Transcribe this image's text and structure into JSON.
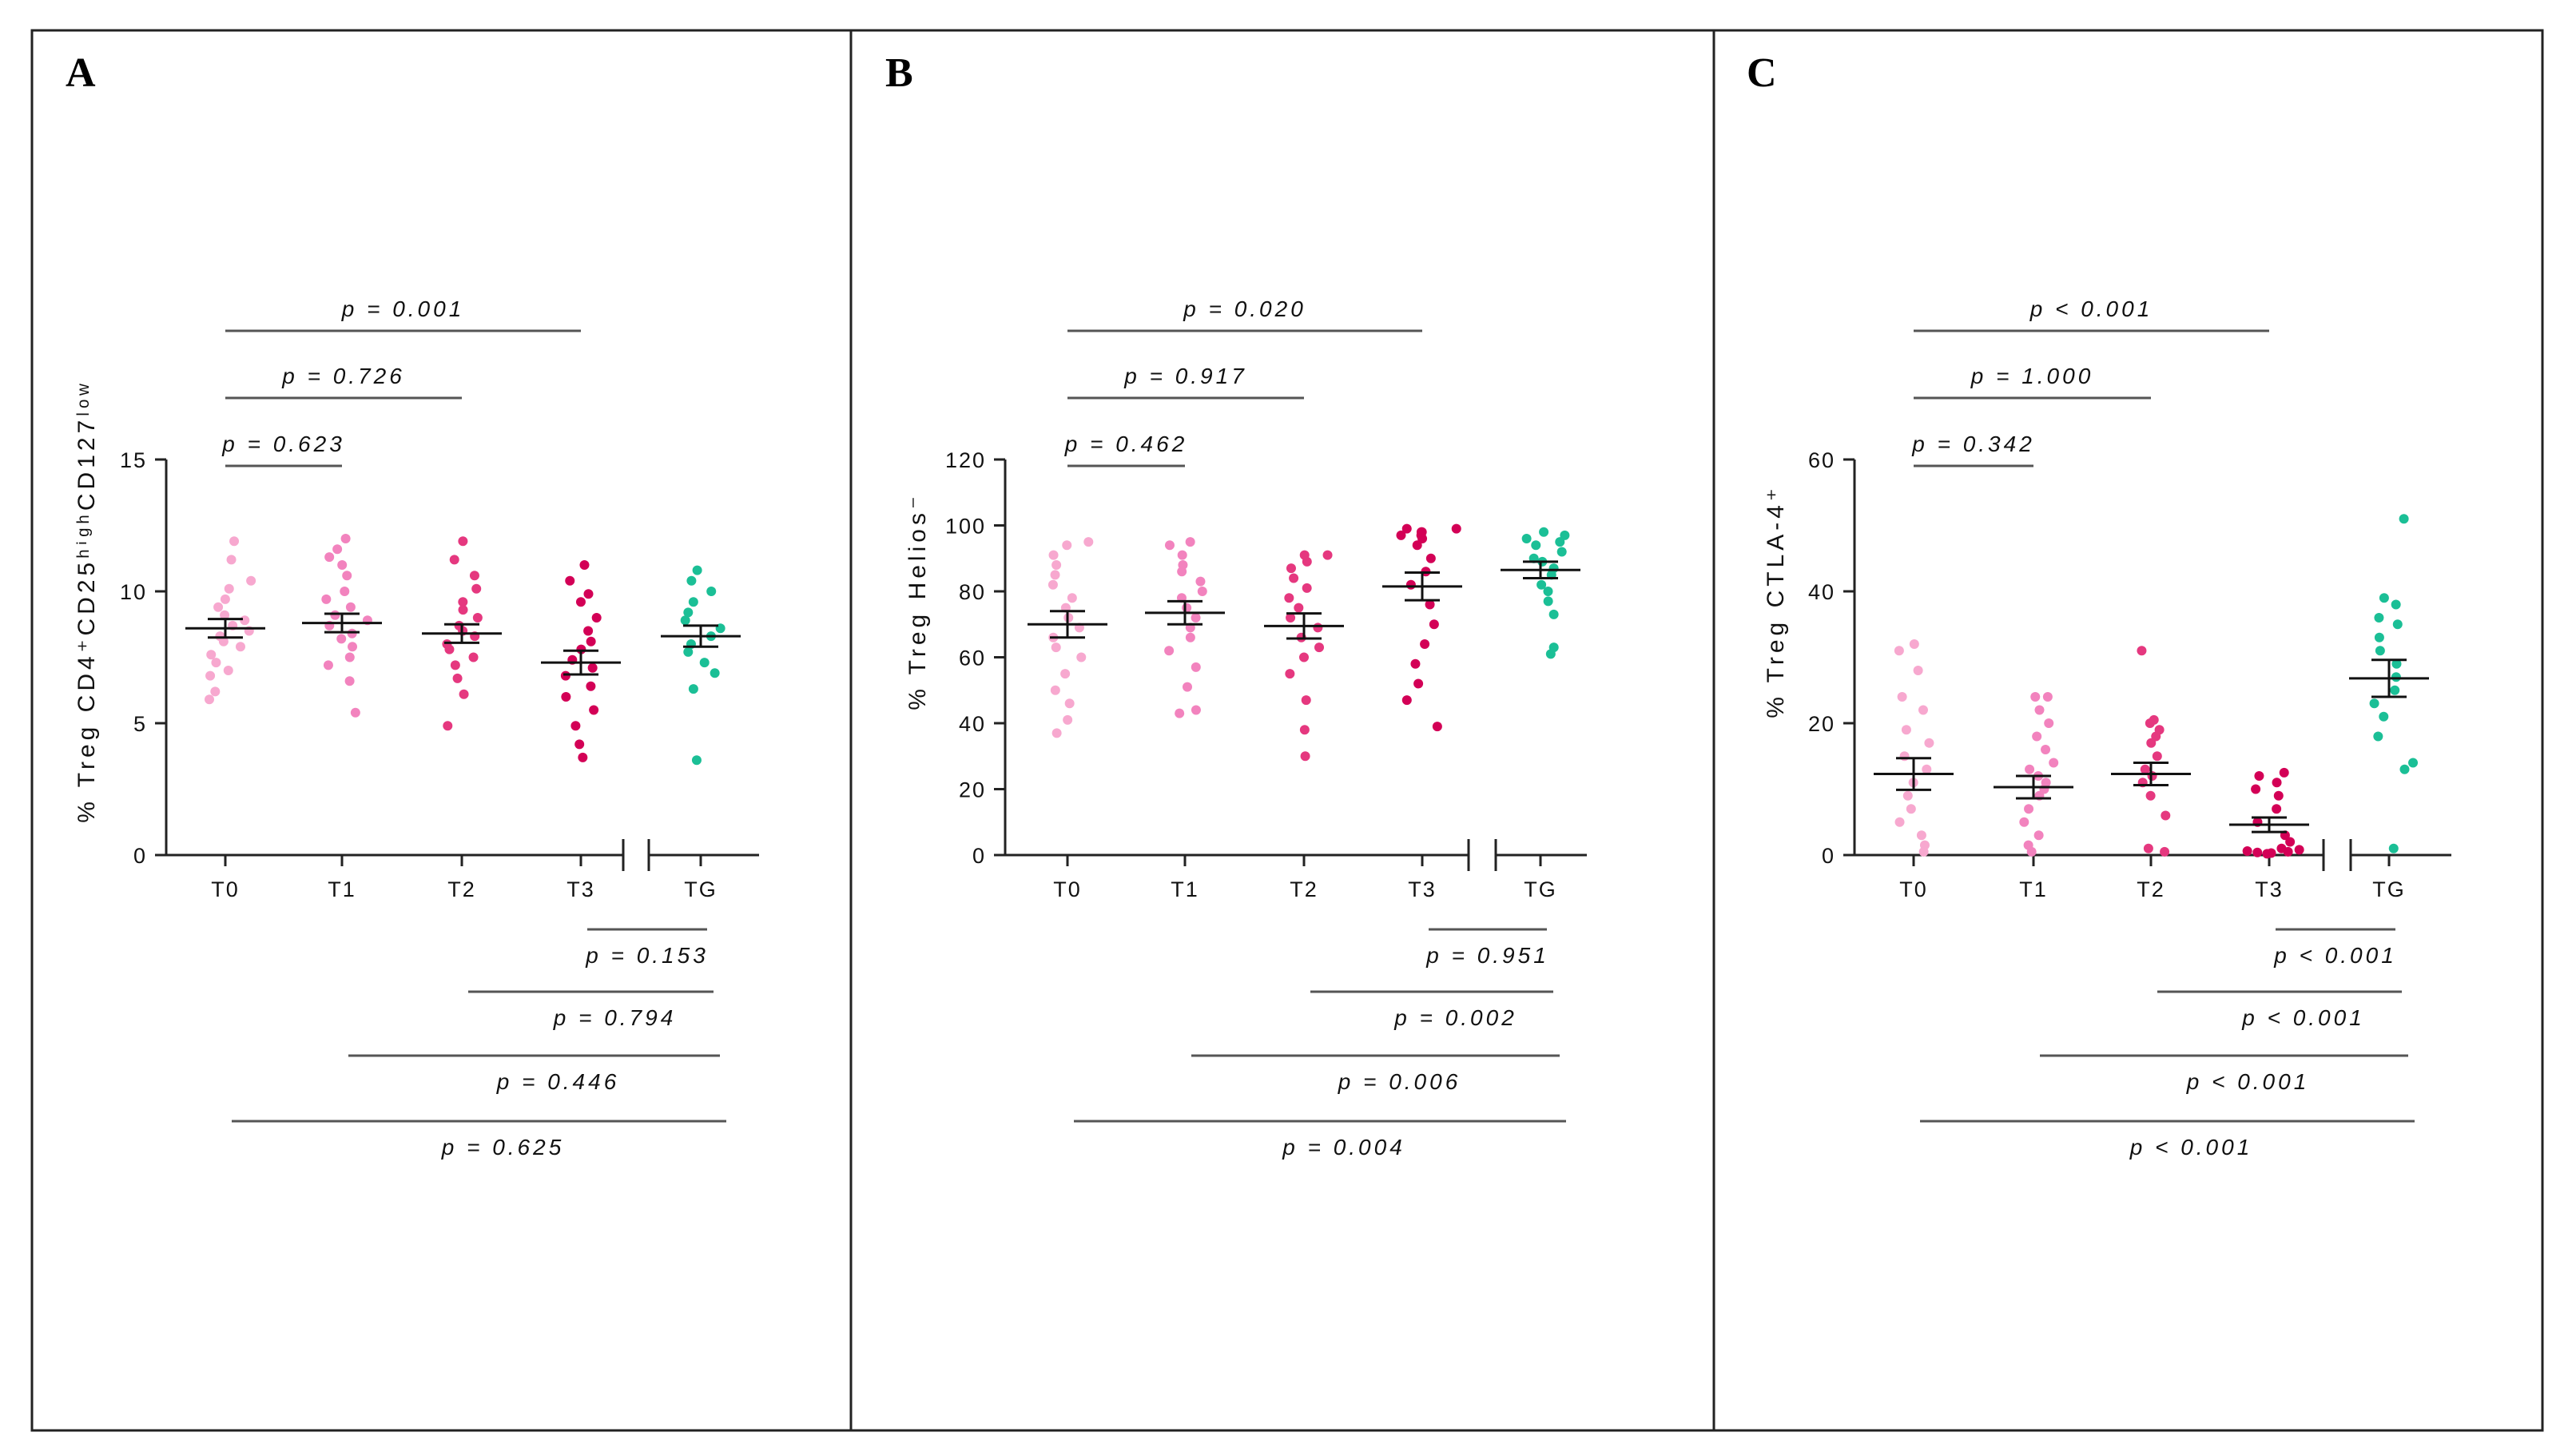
{
  "figure": {
    "panels": [
      "A",
      "B",
      "C"
    ]
  },
  "colors": {
    "T0": "#f7a8cf",
    "T1": "#f283be",
    "T2": "#e5387f",
    "T3": "#d30056",
    "TG": "#1bbf96",
    "axis": "#222222",
    "bracket": "#555555"
  },
  "chart_data": [
    {
      "type": "scatter",
      "panel": "A",
      "ylabel": "% Treg CD4⁺CD25ʰⁱᵍʰCD127ˡᵒʷ",
      "ylim": [
        0,
        15
      ],
      "yticks": [
        "0",
        "5",
        "10",
        "15"
      ],
      "categories": [
        "T0",
        "T1",
        "T2",
        "T3",
        "TG"
      ],
      "series": [
        {
          "name": "T0",
          "mean": 8.6,
          "sem": 0.35,
          "values": [
            5.9,
            6.2,
            6.8,
            7.0,
            7.3,
            7.6,
            7.9,
            8.1,
            8.3,
            8.5,
            8.7,
            8.9,
            9.1,
            9.4,
            9.7,
            10.1,
            10.4,
            11.2,
            11.9
          ]
        },
        {
          "name": "T1",
          "mean": 8.8,
          "sem": 0.35,
          "values": [
            5.4,
            6.6,
            7.2,
            7.5,
            7.9,
            8.2,
            8.4,
            8.7,
            8.9,
            9.1,
            9.4,
            9.7,
            10.0,
            10.6,
            11.0,
            11.3,
            11.6,
            12.0
          ]
        },
        {
          "name": "T2",
          "mean": 8.4,
          "sem": 0.35,
          "values": [
            4.9,
            6.1,
            6.7,
            7.2,
            7.5,
            7.8,
            8.0,
            8.3,
            8.5,
            8.7,
            9.0,
            9.3,
            9.6,
            10.1,
            10.6,
            11.2,
            11.9
          ]
        },
        {
          "name": "T3",
          "mean": 7.3,
          "sem": 0.45,
          "values": [
            3.7,
            4.2,
            4.9,
            5.5,
            6.0,
            6.4,
            6.8,
            7.1,
            7.4,
            7.8,
            8.1,
            8.5,
            9.0,
            9.6,
            9.9,
            10.4,
            11.0
          ]
        },
        {
          "name": "TG",
          "mean": 8.3,
          "sem": 0.4,
          "values": [
            3.6,
            6.3,
            6.9,
            7.3,
            7.7,
            8.0,
            8.3,
            8.6,
            8.9,
            9.2,
            9.6,
            10.0,
            10.4,
            10.8
          ]
        }
      ],
      "brackets_top": [
        {
          "from": "T0",
          "to": "T1",
          "label": "p = 0.623"
        },
        {
          "from": "T0",
          "to": "T2",
          "label": "p = 0.726"
        },
        {
          "from": "T0",
          "to": "T3",
          "label": "p = 0.001"
        }
      ],
      "brackets_bottom": [
        {
          "from": "T3",
          "to": "TG",
          "label": "p = 0.153"
        },
        {
          "from": "T2",
          "to": "TG",
          "label": "p = 0.794"
        },
        {
          "from": "T1",
          "to": "TG",
          "label": "p = 0.446"
        },
        {
          "from": "T0",
          "to": "TG",
          "label": "p = 0.625"
        }
      ]
    },
    {
      "type": "scatter",
      "panel": "B",
      "ylabel": "% Treg Helios⁻",
      "ylim": [
        0,
        120
      ],
      "yticks": [
        "0",
        "20",
        "40",
        "60",
        "80",
        "100",
        "120"
      ],
      "categories": [
        "T0",
        "T1",
        "T2",
        "T3",
        "TG"
      ],
      "series": [
        {
          "name": "T0",
          "mean": 70,
          "sem": 4,
          "values": [
            37,
            41,
            46,
            50,
            55,
            60,
            63,
            66,
            69,
            72,
            75,
            78,
            82,
            85,
            88,
            91,
            94,
            95
          ]
        },
        {
          "name": "T1",
          "mean": 73.5,
          "sem": 3.5,
          "values": [
            43,
            44,
            51,
            57,
            62,
            66,
            69,
            72,
            75,
            78,
            80,
            83,
            86,
            88,
            91,
            94,
            95
          ]
        },
        {
          "name": "T2",
          "mean": 69.5,
          "sem": 3.8,
          "values": [
            30,
            38,
            47,
            55,
            60,
            63,
            66,
            69,
            72,
            75,
            78,
            81,
            84,
            87,
            89,
            91,
            91
          ]
        },
        {
          "name": "T3",
          "mean": 81.5,
          "sem": 4.2,
          "values": [
            39,
            47,
            52,
            58,
            64,
            70,
            76,
            82,
            86,
            90,
            94,
            96,
            97,
            97,
            98,
            98,
            99,
            99
          ]
        },
        {
          "name": "TG",
          "mean": 86.5,
          "sem": 2.5,
          "values": [
            61,
            63,
            73,
            77,
            80,
            82,
            85,
            87,
            89,
            90,
            92,
            94,
            95,
            96,
            97,
            98
          ]
        }
      ],
      "brackets_top": [
        {
          "from": "T0",
          "to": "T1",
          "label": "p = 0.462"
        },
        {
          "from": "T0",
          "to": "T2",
          "label": "p = 0.917"
        },
        {
          "from": "T0",
          "to": "T3",
          "label": "p = 0.020"
        }
      ],
      "brackets_bottom": [
        {
          "from": "T3",
          "to": "TG",
          "label": "p = 0.951"
        },
        {
          "from": "T2",
          "to": "TG",
          "label": "p = 0.002"
        },
        {
          "from": "T1",
          "to": "TG",
          "label": "p = 0.006"
        },
        {
          "from": "T0",
          "to": "TG",
          "label": "p = 0.004"
        }
      ]
    },
    {
      "type": "scatter",
      "panel": "C",
      "ylabel": "% Treg CTLA-4⁺",
      "ylim": [
        0,
        60
      ],
      "yticks": [
        "0",
        "20",
        "40",
        "60"
      ],
      "categories": [
        "T0",
        "T1",
        "T2",
        "T3",
        "TG"
      ],
      "series": [
        {
          "name": "T0",
          "mean": 12.3,
          "sem": 2.4,
          "values": [
            0.5,
            1.5,
            3,
            5,
            7,
            9,
            11,
            13,
            15,
            17,
            19,
            22,
            24,
            28,
            31,
            32
          ]
        },
        {
          "name": "T1",
          "mean": 10.3,
          "sem": 1.7,
          "values": [
            0.5,
            1.5,
            3,
            5,
            7,
            9,
            10,
            11,
            12,
            13,
            14,
            16,
            18,
            20,
            22,
            24,
            24
          ]
        },
        {
          "name": "T2",
          "mean": 12.3,
          "sem": 1.7,
          "values": [
            0.5,
            1,
            6,
            9,
            11,
            12,
            13,
            15,
            17,
            18,
            19,
            20,
            20.5,
            31
          ]
        },
        {
          "name": "T3",
          "mean": 4.6,
          "sem": 1.1,
          "values": [
            0.2,
            0.3,
            0.4,
            0.5,
            0.6,
            0.8,
            1,
            2,
            3,
            5,
            7,
            9,
            10,
            11,
            12,
            12.5
          ]
        },
        {
          "name": "TG",
          "mean": 26.8,
          "sem": 2.8,
          "values": [
            1,
            13,
            14,
            18,
            21,
            23,
            25,
            27,
            29,
            31,
            33,
            35,
            36,
            38,
            39,
            51
          ]
        }
      ],
      "brackets_top": [
        {
          "from": "T0",
          "to": "T1",
          "label": "p = 0.342"
        },
        {
          "from": "T0",
          "to": "T2",
          "label": "p = 1.000"
        },
        {
          "from": "T0",
          "to": "T3",
          "label": "p < 0.001"
        }
      ],
      "brackets_bottom": [
        {
          "from": "T3",
          "to": "TG",
          "label": "p < 0.001"
        },
        {
          "from": "T2",
          "to": "TG",
          "label": "p < 0.001"
        },
        {
          "from": "T1",
          "to": "TG",
          "label": "p < 0.001"
        },
        {
          "from": "T0",
          "to": "TG",
          "label": "p < 0.001"
        }
      ]
    }
  ]
}
